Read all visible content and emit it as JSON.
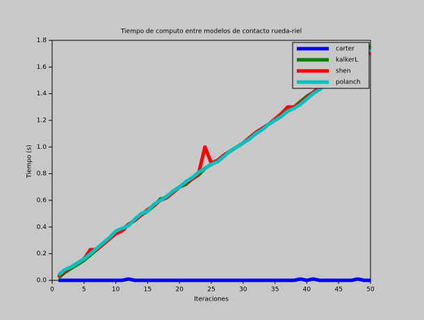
{
  "chart_data": {
    "type": "line",
    "title": "Tiempo de computo entre modelos de contacto rueda-riel",
    "xlabel": "Iteraciones",
    "ylabel": "Tiempo (s)",
    "x": [
      1,
      2,
      3,
      4,
      5,
      6,
      7,
      8,
      9,
      10,
      11,
      12,
      13,
      14,
      15,
      16,
      17,
      18,
      19,
      20,
      21,
      22,
      23,
      24,
      25,
      26,
      27,
      28,
      29,
      30,
      31,
      32,
      33,
      34,
      35,
      36,
      37,
      38,
      39,
      40,
      41,
      42,
      43,
      44,
      45,
      46,
      47,
      48,
      49,
      50
    ],
    "series": [
      {
        "name": "carter",
        "color": "#0000ff",
        "values": [
          0,
          0,
          0,
          0,
          0,
          0,
          0,
          0,
          0,
          0,
          0,
          0.01,
          0,
          0,
          0,
          0,
          0,
          0,
          0,
          0,
          0,
          0,
          0,
          0,
          0,
          0,
          0,
          0,
          0,
          0,
          0,
          0,
          0,
          0,
          0,
          0,
          0,
          0,
          0.01,
          0,
          0.01,
          0,
          0,
          0,
          0,
          0,
          0,
          0.01,
          0,
          0
        ]
      },
      {
        "name": "kalkerL",
        "color": "#008000",
        "values": [
          0.02,
          0.06,
          0.09,
          0.12,
          0.15,
          0.19,
          0.23,
          0.27,
          0.31,
          0.35,
          0.38,
          0.42,
          0.45,
          0.49,
          0.52,
          0.56,
          0.61,
          0.62,
          0.66,
          0.7,
          0.72,
          0.76,
          0.79,
          0.84,
          0.87,
          0.9,
          0.94,
          0.97,
          1.0,
          1.03,
          1.07,
          1.1,
          1.14,
          1.17,
          1.2,
          1.23,
          1.27,
          1.3,
          1.34,
          1.38,
          1.41,
          1.44,
          1.48,
          1.52,
          1.55,
          1.59,
          1.63,
          1.67,
          1.71,
          1.76
        ]
      },
      {
        "name": "shen",
        "color": "#ff0000",
        "values": [
          0.03,
          0.07,
          0.1,
          0.13,
          0.16,
          0.23,
          0.23,
          0.27,
          0.31,
          0.35,
          0.37,
          0.42,
          0.45,
          0.49,
          0.53,
          0.56,
          0.6,
          0.62,
          0.66,
          0.7,
          0.73,
          0.76,
          0.8,
          1.0,
          0.88,
          0.9,
          0.94,
          0.97,
          1.0,
          1.03,
          1.07,
          1.11,
          1.14,
          1.17,
          1.21,
          1.25,
          1.3,
          1.3,
          1.33,
          1.37,
          1.41,
          1.45,
          1.49,
          1.52,
          1.56,
          1.59,
          1.62,
          1.65,
          1.68,
          1.71
        ]
      },
      {
        "name": "polanch",
        "color": "#00c0c0",
        "values": [
          0.04,
          0.08,
          0.1,
          0.13,
          0.16,
          0.2,
          0.24,
          0.28,
          0.32,
          0.37,
          0.39,
          0.41,
          0.46,
          0.5,
          0.52,
          0.57,
          0.6,
          0.63,
          0.67,
          0.7,
          0.74,
          0.77,
          0.81,
          0.84,
          0.87,
          0.89,
          0.93,
          0.97,
          1.0,
          1.03,
          1.06,
          1.1,
          1.13,
          1.17,
          1.2,
          1.23,
          1.27,
          1.29,
          1.32,
          1.36,
          1.4,
          1.43,
          1.47,
          1.5,
          1.54,
          1.58,
          1.61,
          1.65,
          1.69,
          1.73
        ]
      }
    ],
    "xlim": [
      0,
      50
    ],
    "ylim": [
      0,
      1.8
    ],
    "xticks": [
      0,
      5,
      10,
      15,
      20,
      25,
      30,
      35,
      40,
      45,
      50
    ],
    "yticks": [
      {
        "value": 0,
        "label": "0.0"
      },
      0.2,
      0.4,
      0.6,
      0.8,
      {
        "value": 1,
        "label": "1.0"
      },
      1.2,
      1.4,
      1.6,
      1.8
    ],
    "legend": "upper right"
  }
}
